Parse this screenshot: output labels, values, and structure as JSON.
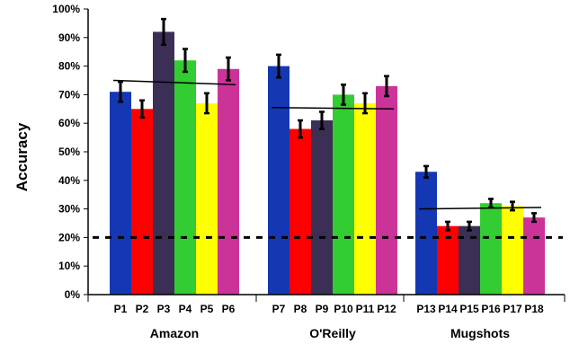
{
  "chart_data": {
    "type": "bar",
    "title": "",
    "xlabel": "",
    "ylabel": "Accuracy",
    "ylim": [
      0,
      100
    ],
    "y_tick_labels": [
      "0%",
      "10%",
      "20%",
      "30%",
      "40%",
      "50%",
      "60%",
      "70%",
      "80%",
      "90%",
      "100%"
    ],
    "groups": [
      {
        "label": "Amazon",
        "bars": [
          {
            "label": "P1",
            "value": 71,
            "error": 3.5
          },
          {
            "label": "P2",
            "value": 65,
            "error": 3
          },
          {
            "label": "P3",
            "value": 92,
            "error": 4.5
          },
          {
            "label": "P4",
            "value": 82,
            "error": 4
          },
          {
            "label": "P5",
            "value": 67,
            "error": 3.5
          },
          {
            "label": "P6",
            "value": 79,
            "error": 4
          }
        ],
        "trend": [
          75,
          73.5
        ]
      },
      {
        "label": "O'Reilly",
        "bars": [
          {
            "label": "P7",
            "value": 80,
            "error": 4
          },
          {
            "label": "P8",
            "value": 58,
            "error": 3
          },
          {
            "label": "P9",
            "value": 61,
            "error": 3
          },
          {
            "label": "P10",
            "value": 70,
            "error": 3.5
          },
          {
            "label": "P11",
            "value": 67,
            "error": 3.5
          },
          {
            "label": "P12",
            "value": 73,
            "error": 3.5
          }
        ],
        "trend": [
          65.5,
          65
        ]
      },
      {
        "label": "Mugshots",
        "bars": [
          {
            "label": "P13",
            "value": 43,
            "error": 2
          },
          {
            "label": "P14",
            "value": 24,
            "error": 1.5
          },
          {
            "label": "P15",
            "value": 24,
            "error": 1.5
          },
          {
            "label": "P16",
            "value": 32,
            "error": 1.5
          },
          {
            "label": "P17",
            "value": 31,
            "error": 1.5
          },
          {
            "label": "P18",
            "value": 27,
            "error": 1.5
          }
        ],
        "trend": [
          30,
          30.5
        ]
      }
    ],
    "series_colors": [
      "#1438b4",
      "#ff0000",
      "#3b2f56",
      "#33cc33",
      "#ffff00",
      "#cc3399"
    ],
    "baseline": {
      "value": 20,
      "style": "dashed",
      "color": "#000000"
    },
    "grid": false,
    "legend": "none"
  }
}
